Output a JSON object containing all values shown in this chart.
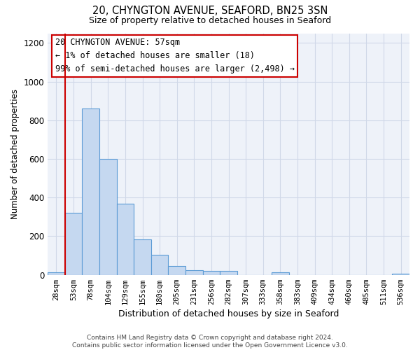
{
  "title": "20, CHYNGTON AVENUE, SEAFORD, BN25 3SN",
  "subtitle": "Size of property relative to detached houses in Seaford",
  "xlabel": "Distribution of detached houses by size in Seaford",
  "ylabel": "Number of detached properties",
  "bin_labels": [
    "28sqm",
    "53sqm",
    "78sqm",
    "104sqm",
    "129sqm",
    "155sqm",
    "180sqm",
    "205sqm",
    "231sqm",
    "256sqm",
    "282sqm",
    "307sqm",
    "333sqm",
    "358sqm",
    "383sqm",
    "409sqm",
    "434sqm",
    "460sqm",
    "485sqm",
    "511sqm",
    "536sqm"
  ],
  "bar_heights": [
    15,
    320,
    860,
    600,
    370,
    185,
    105,
    47,
    25,
    20,
    20,
    0,
    0,
    15,
    0,
    0,
    0,
    0,
    0,
    0,
    5
  ],
  "bar_color": "#c5d8f0",
  "bar_edge_color": "#5b9bd5",
  "ylim": [
    0,
    1250
  ],
  "yticks": [
    0,
    200,
    400,
    600,
    800,
    1000,
    1200
  ],
  "marker_color": "#cc0000",
  "annotation_box_color": "#cc0000",
  "annotation_lines": [
    "20 CHYNGTON AVENUE: 57sqm",
    "← 1% of detached houses are smaller (18)",
    "99% of semi-detached houses are larger (2,498) →"
  ],
  "footer_lines": [
    "Contains HM Land Registry data © Crown copyright and database right 2024.",
    "Contains public sector information licensed under the Open Government Licence v3.0."
  ],
  "grid_color": "#d0d8e8",
  "background_color": "#eef2f9"
}
